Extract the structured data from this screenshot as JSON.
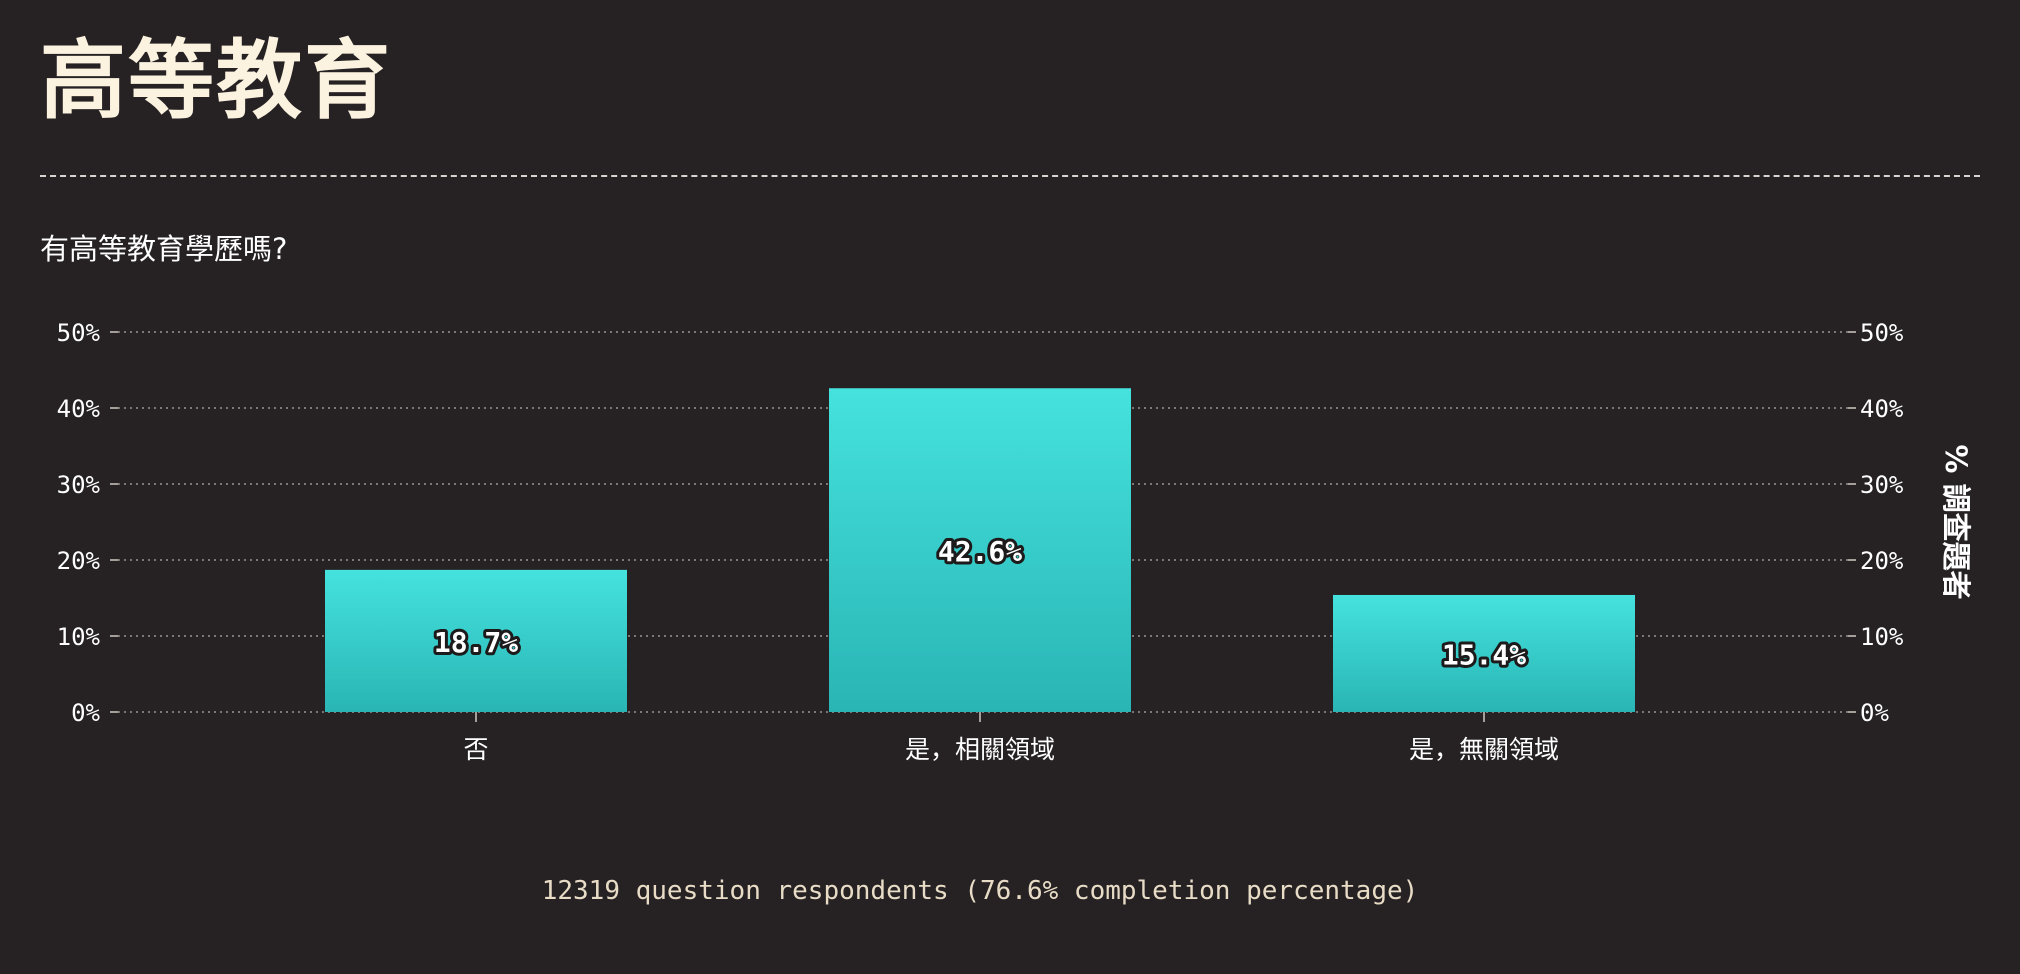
{
  "page": {
    "title": "高等教育",
    "footer": "12319 question respondents (76.6% completion percentage)"
  },
  "chart_data": {
    "type": "bar",
    "title": "有高等教育學歷嗎?",
    "categories": [
      "否",
      "是，相關領域",
      "是，無關領域"
    ],
    "values": [
      18.7,
      42.6,
      15.4
    ],
    "value_labels": [
      "18.7%",
      "42.6%",
      "15.4%"
    ],
    "ylabel_right": "% 調查題者",
    "ylim": [
      0,
      50
    ],
    "yticks": [
      "0%",
      "10%",
      "20%",
      "30%",
      "40%",
      "50%"
    ],
    "grid": true,
    "colors": {
      "bar_top": "#45e2de",
      "bar_bottom": "#29b5b4",
      "background": "#262224"
    }
  }
}
